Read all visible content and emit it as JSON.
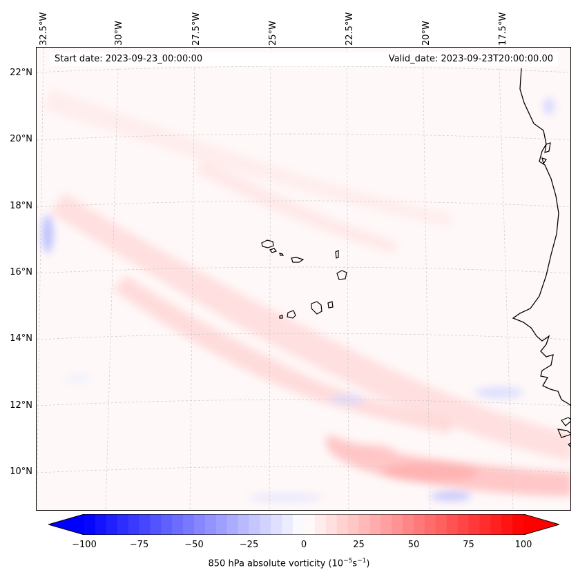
{
  "map": {
    "projection_labels": {
      "longitudes": [
        "32.5°W",
        "30°W",
        "27.5°W",
        "25°W",
        "22.5°W",
        "20°W",
        "17.5°W"
      ],
      "latitudes": [
        "22°N",
        "20°N",
        "18°N",
        "16°N",
        "14°N",
        "12°N",
        "10°N"
      ]
    },
    "start_date": "Start date: 2023-09-23_00:00:00",
    "valid_date": "Valid_date: 2023-09-23T20:00:00.00",
    "field": "850 hPa absolute vorticity",
    "colors": {
      "negative": "#0000ff",
      "zero": "#ffffff",
      "positive": "#ff0000",
      "coastline": "#000000",
      "gridline": "#b0b0b0"
    }
  },
  "colorbar": {
    "ticks": [
      "−100",
      "−75",
      "−50",
      "−25",
      "0",
      "25",
      "50",
      "75",
      "100"
    ],
    "values": [
      -100,
      -75,
      -50,
      -25,
      0,
      25,
      50,
      75,
      100
    ],
    "label_prefix": "850 hPa absolute vorticity (10",
    "label_unit_exp1": "−5",
    "label_mid": "s",
    "label_unit_exp2": "−1",
    "label_suffix": ")"
  }
}
